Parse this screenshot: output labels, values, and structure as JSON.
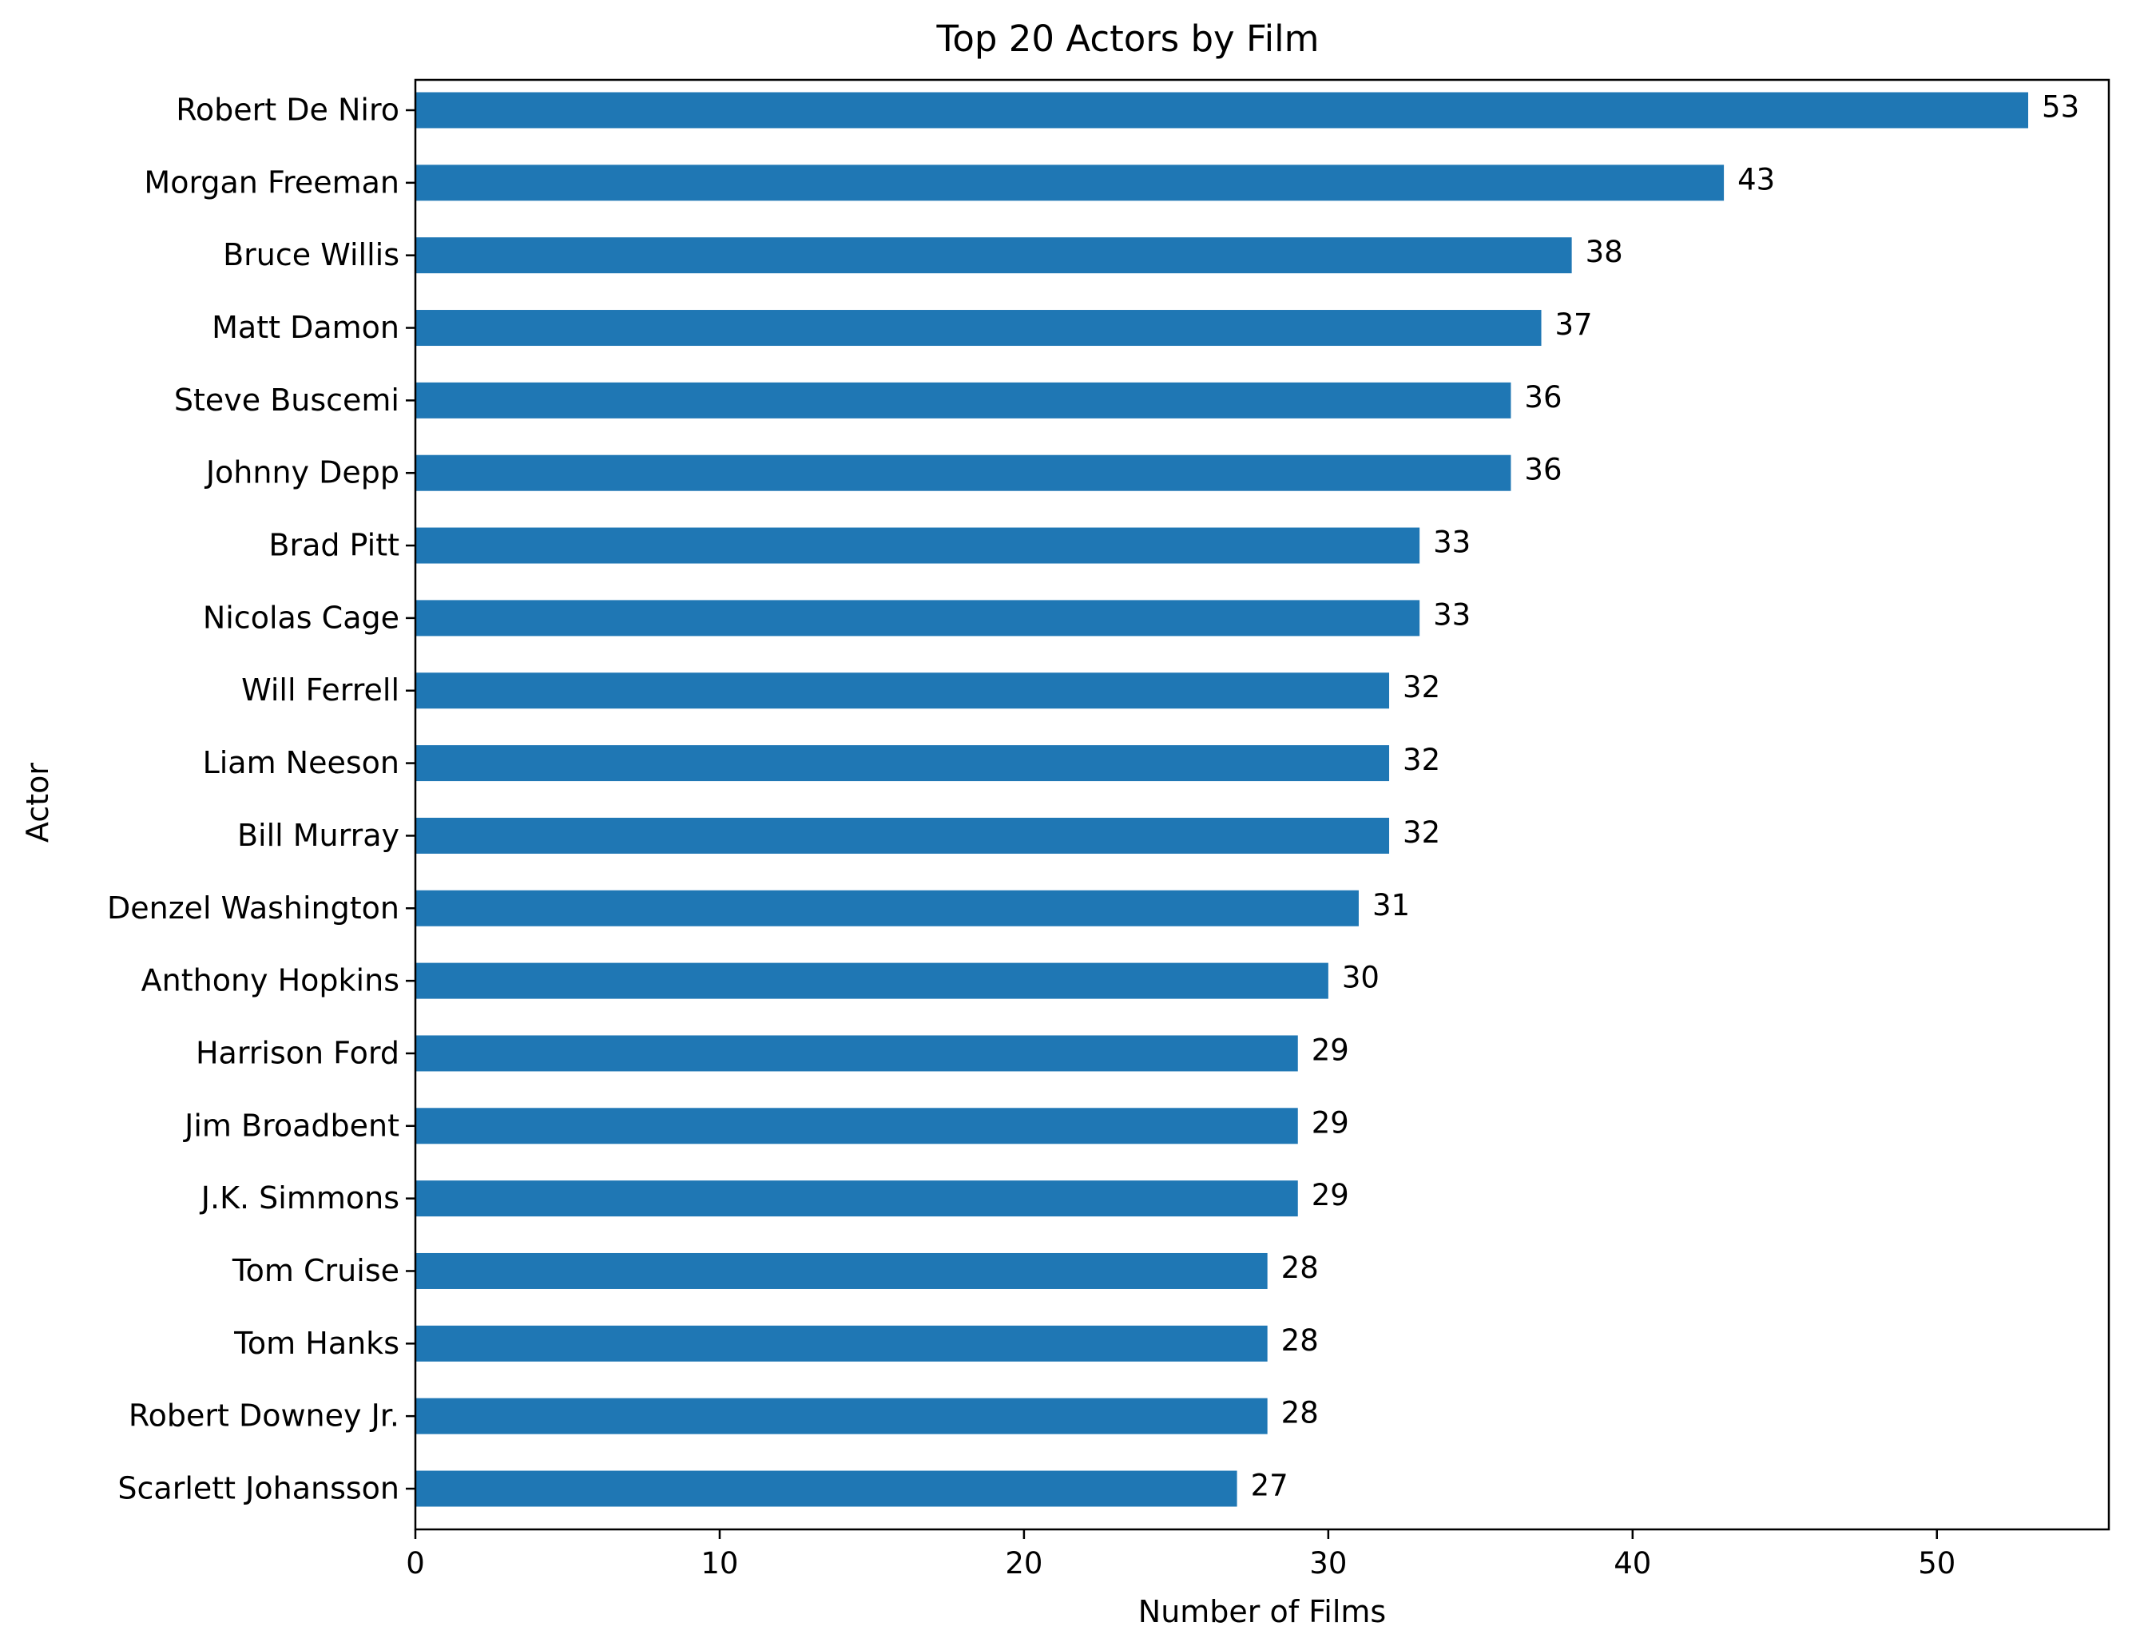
{
  "chart_data": {
    "type": "bar",
    "orientation": "horizontal",
    "title": "Top 20 Actors by Film",
    "xlabel": "Number of Films",
    "ylabel": "Actor",
    "xlim": [
      0,
      55.65
    ],
    "xticks": [
      0,
      10,
      20,
      30,
      40,
      50
    ],
    "grid": false,
    "legend": "none",
    "bar_color": "#1f77b4",
    "categories": [
      "Robert De Niro",
      "Morgan Freeman",
      "Bruce Willis",
      "Matt Damon",
      "Steve Buscemi",
      "Johnny Depp",
      "Brad Pitt",
      "Nicolas Cage",
      "Will Ferrell",
      "Liam Neeson",
      "Bill Murray",
      "Denzel Washington",
      "Anthony Hopkins",
      "Harrison Ford",
      "Jim Broadbent",
      "J.K. Simmons",
      "Tom Cruise",
      "Tom Hanks",
      "Robert Downey Jr.",
      "Scarlett Johansson"
    ],
    "values": [
      53,
      43,
      38,
      37,
      36,
      36,
      33,
      33,
      32,
      32,
      32,
      31,
      30,
      29,
      29,
      29,
      28,
      28,
      28,
      27
    ]
  }
}
